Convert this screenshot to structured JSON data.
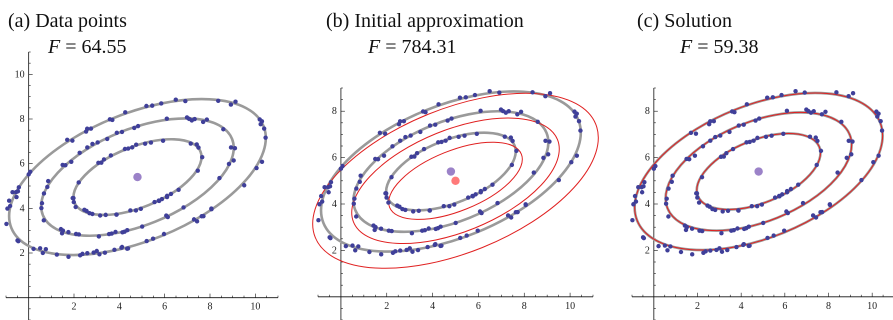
{
  "colors": {
    "data_point": "#3f3f99",
    "ellipse": "#9a9a9a",
    "approximation": "#e02020",
    "center": "#9b82c8",
    "approx_center": "#ff7a7a"
  },
  "chart_data": [
    {
      "type": "scatter",
      "title": "(a) Data points",
      "subtitle_label": "F",
      "subtitle_value": "= 64.55",
      "xlim": [
        -1,
        11
      ],
      "ylim": [
        -1,
        11
      ],
      "xticks": [
        2,
        4,
        6,
        8,
        10
      ],
      "yticks": [
        2,
        4,
        6,
        8,
        10
      ],
      "center": [
        4.8,
        5.4
      ],
      "ellipses": [
        {
          "cx": 4.8,
          "cy": 5.4,
          "a": 6.0,
          "b": 2.85,
          "angle_deg": 22
        },
        {
          "cx": 4.8,
          "cy": 5.4,
          "a": 4.5,
          "b": 2.15,
          "angle_deg": 22
        },
        {
          "cx": 4.8,
          "cy": 5.4,
          "a": 3.0,
          "b": 1.35,
          "angle_deg": 22
        }
      ],
      "approximation": []
    },
    {
      "type": "scatter",
      "title": "(b) Initial approximation",
      "subtitle_label": "F",
      "subtitle_value": "= 784.31",
      "xlim": [
        -1,
        11
      ],
      "ylim": [
        -1,
        9
      ],
      "xticks": [
        2,
        4,
        6,
        8,
        10
      ],
      "yticks": [
        2,
        4,
        6,
        8
      ],
      "center": [
        4.8,
        5.4
      ],
      "approx_center": [
        5.0,
        5.0
      ],
      "ellipses": [
        {
          "cx": 4.8,
          "cy": 5.4,
          "a": 6.0,
          "b": 2.85,
          "angle_deg": 22
        },
        {
          "cx": 4.8,
          "cy": 5.4,
          "a": 4.5,
          "b": 2.15,
          "angle_deg": 22
        },
        {
          "cx": 4.8,
          "cy": 5.4,
          "a": 3.0,
          "b": 1.35,
          "angle_deg": 22
        }
      ],
      "approximation": [
        {
          "cx": 5.0,
          "cy": 5.0,
          "a": 6.6,
          "b": 3.1,
          "angle_deg": 22
        },
        {
          "cx": 5.0,
          "cy": 5.0,
          "a": 4.8,
          "b": 2.2,
          "angle_deg": 22
        },
        {
          "cx": 5.0,
          "cy": 5.0,
          "a": 3.1,
          "b": 1.3,
          "angle_deg": 22
        }
      ]
    },
    {
      "type": "scatter",
      "title": "(c) Solution",
      "subtitle_label": "F",
      "subtitle_value": "= 59.38",
      "xlim": [
        -1,
        11
      ],
      "ylim": [
        -1,
        9
      ],
      "xticks": [
        2,
        4,
        6,
        8,
        10
      ],
      "yticks": [
        2,
        4,
        6,
        8
      ],
      "center": [
        4.8,
        5.4
      ],
      "ellipses": [
        {
          "cx": 4.8,
          "cy": 5.4,
          "a": 6.0,
          "b": 2.85,
          "angle_deg": 22
        },
        {
          "cx": 4.8,
          "cy": 5.4,
          "a": 4.5,
          "b": 2.15,
          "angle_deg": 22
        },
        {
          "cx": 4.8,
          "cy": 5.4,
          "a": 3.0,
          "b": 1.35,
          "angle_deg": 22
        }
      ],
      "approximation": [
        {
          "cx": 4.8,
          "cy": 5.4,
          "a": 6.0,
          "b": 2.85,
          "angle_deg": 22
        },
        {
          "cx": 4.8,
          "cy": 5.4,
          "a": 4.5,
          "b": 2.15,
          "angle_deg": 22
        },
        {
          "cx": 4.8,
          "cy": 5.4,
          "a": 3.0,
          "b": 1.35,
          "angle_deg": 22
        }
      ]
    }
  ]
}
